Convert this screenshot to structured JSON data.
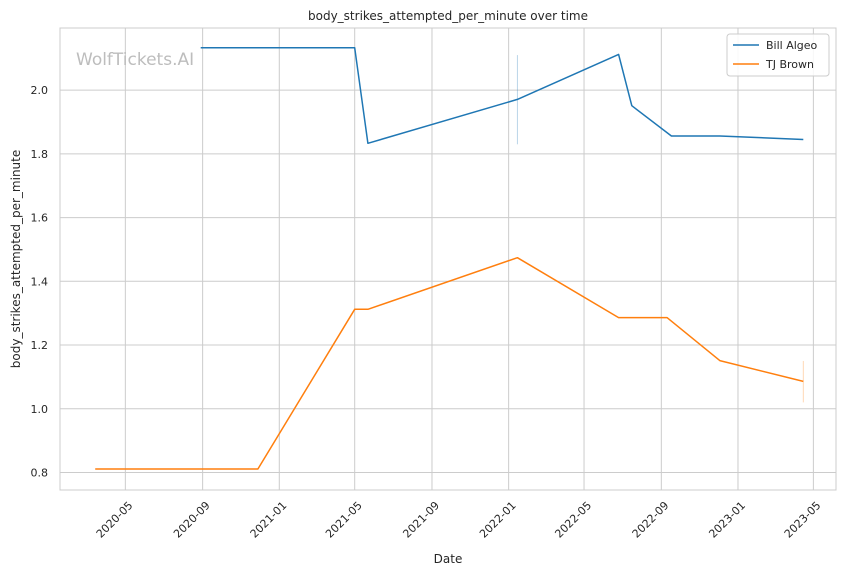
{
  "chart_data": {
    "type": "line",
    "title": "body_strikes_attempted_per_minute over time",
    "xlabel": "Date",
    "ylabel": "body_strikes_attempted_per_minute",
    "watermark": "WolfTickets.AI",
    "x_range": [
      "2020-01-18",
      "2023-06-06"
    ],
    "ylim": [
      0.745,
      2.195
    ],
    "x_ticks": [
      "2020-05",
      "2020-09",
      "2021-01",
      "2021-05",
      "2021-09",
      "2022-01",
      "2022-05",
      "2022-09",
      "2023-01",
      "2023-05"
    ],
    "y_ticks": [
      "0.8",
      "1.0",
      "1.2",
      "1.4",
      "1.6",
      "1.8",
      "2.0"
    ],
    "grid": true,
    "legend_position": "top-right",
    "series": [
      {
        "name": "Bill Algeo",
        "color": "#1f77b4",
        "points": [
          {
            "x": "2020-08-29",
            "y": 2.133
          },
          {
            "x": "2021-05-01",
            "y": 2.133
          },
          {
            "x": "2021-05-22",
            "y": 1.833
          },
          {
            "x": "2022-01-15",
            "y": 1.971
          },
          {
            "x": "2022-06-25",
            "y": 2.112
          },
          {
            "x": "2022-07-16",
            "y": 1.951
          },
          {
            "x": "2022-09-17",
            "y": 1.856
          },
          {
            "x": "2022-12-03",
            "y": 1.856
          },
          {
            "x": "2023-04-15",
            "y": 1.845
          }
        ],
        "error_bar": {
          "x": "2022-01-15",
          "low": 1.83,
          "high": 2.11
        }
      },
      {
        "name": "TJ Brown",
        "color": "#ff7f0e",
        "points": [
          {
            "x": "2020-03-14",
            "y": 0.811
          },
          {
            "x": "2020-11-28",
            "y": 0.811
          },
          {
            "x": "2021-05-01",
            "y": 1.312
          },
          {
            "x": "2021-05-22",
            "y": 1.312
          },
          {
            "x": "2022-01-15",
            "y": 1.474
          },
          {
            "x": "2022-06-25",
            "y": 1.286
          },
          {
            "x": "2022-09-10",
            "y": 1.286
          },
          {
            "x": "2022-12-03",
            "y": 1.151
          },
          {
            "x": "2023-04-15",
            "y": 1.086
          }
        ],
        "error_bar": {
          "x": "2023-04-15",
          "low": 1.02,
          "high": 1.15
        }
      }
    ]
  }
}
